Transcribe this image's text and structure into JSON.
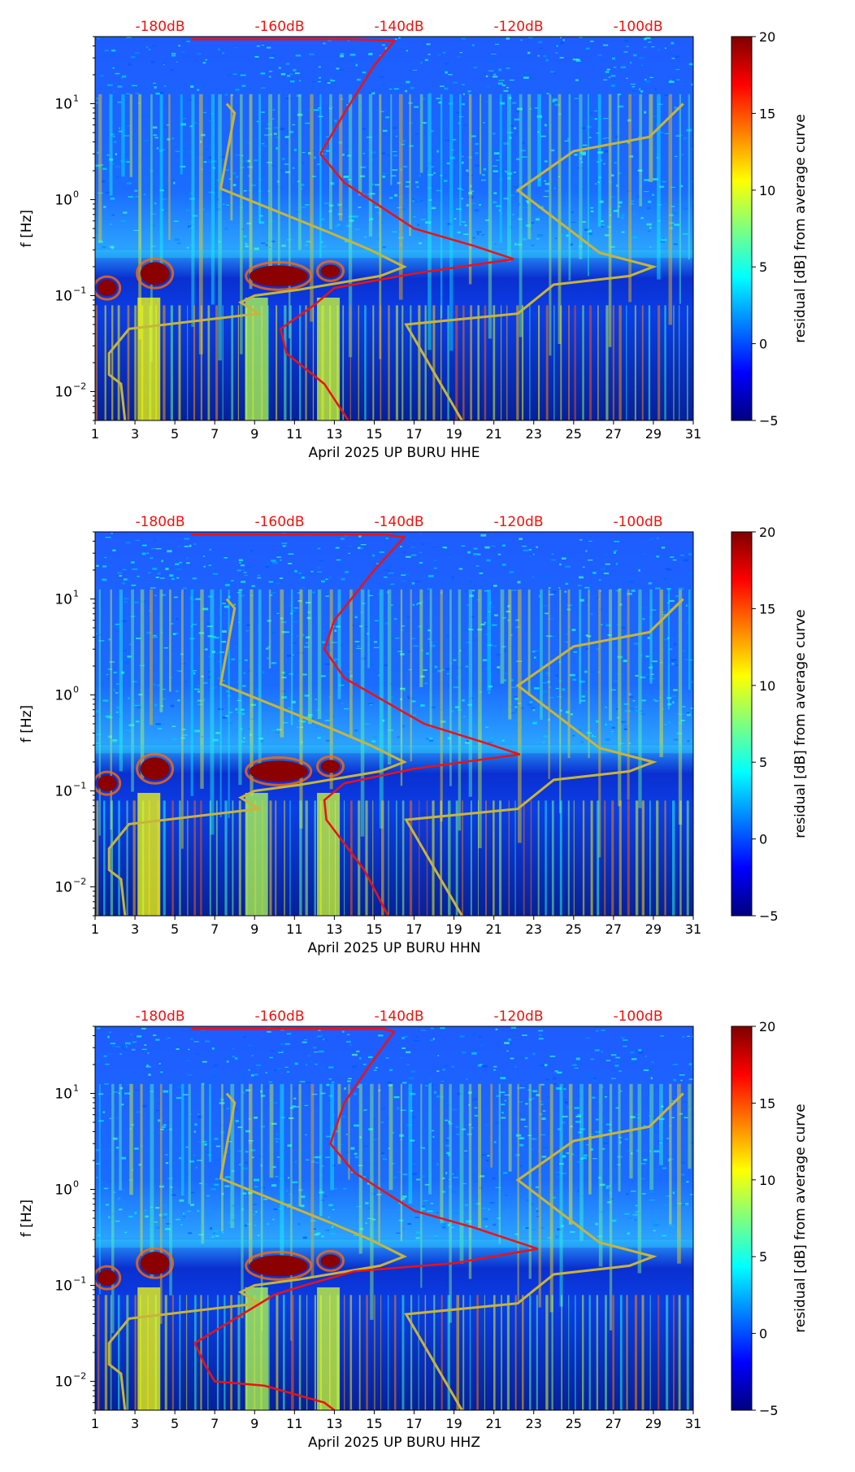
{
  "chart_data": [
    {
      "type": "heatmap",
      "title": "",
      "xlabel": "April 2025 UP BURU  HHE",
      "ylabel": "f [Hz]",
      "xlim": [
        1,
        31
      ],
      "x_ticks": [
        "1",
        "3",
        "5",
        "7",
        "9",
        "11",
        "13",
        "15",
        "17",
        "19",
        "21",
        "23",
        "25",
        "27",
        "29",
        "31"
      ],
      "y_ticks": [
        {
          "label": "10",
          "exp": "1"
        },
        {
          "label": "10",
          "exp": "0"
        },
        {
          "label": "10",
          "exp": "−1"
        },
        {
          "label": "10",
          "exp": "−2"
        }
      ],
      "top_axis_labels": [
        "-180dB",
        "-160dB",
        "-140dB",
        "-120dB",
        "-100dB"
      ],
      "colorbar": {
        "label": "residual [dB] from average curve",
        "min": -5,
        "max": 20,
        "ticks": [
          "20",
          "15",
          "10",
          "5",
          "0",
          "−5"
        ]
      }
    },
    {
      "type": "heatmap",
      "title": "",
      "xlabel": "April 2025 UP BURU  HHN",
      "ylabel": "f [Hz]",
      "xlim": [
        1,
        31
      ],
      "x_ticks": [
        "1",
        "3",
        "5",
        "7",
        "9",
        "11",
        "13",
        "15",
        "17",
        "19",
        "21",
        "23",
        "25",
        "27",
        "29",
        "31"
      ],
      "y_ticks": [
        {
          "label": "10",
          "exp": "1"
        },
        {
          "label": "10",
          "exp": "0"
        },
        {
          "label": "10",
          "exp": "−1"
        },
        {
          "label": "10",
          "exp": "−2"
        }
      ],
      "top_axis_labels": [
        "-180dB",
        "-160dB",
        "-140dB",
        "-120dB",
        "-100dB"
      ],
      "colorbar": {
        "label": "residual [dB] from average curve",
        "min": -5,
        "max": 20,
        "ticks": [
          "20",
          "15",
          "10",
          "5",
          "0",
          "−5"
        ]
      }
    },
    {
      "type": "heatmap",
      "title": "",
      "xlabel": "April 2025 UP BURU  HHZ",
      "ylabel": "f [Hz]",
      "xlim": [
        1,
        31
      ],
      "x_ticks": [
        "1",
        "3",
        "5",
        "7",
        "9",
        "11",
        "13",
        "15",
        "17",
        "19",
        "21",
        "23",
        "25",
        "27",
        "29",
        "31"
      ],
      "y_ticks": [
        {
          "label": "10",
          "exp": "1"
        },
        {
          "label": "10",
          "exp": "0"
        },
        {
          "label": "10",
          "exp": "−1"
        },
        {
          "label": "10",
          "exp": "−2"
        }
      ],
      "top_axis_labels": [
        "-180dB",
        "-160dB",
        "-140dB",
        "-120dB",
        "-100dB"
      ],
      "colorbar": {
        "label": "residual [dB] from average curve",
        "min": -5,
        "max": 20,
        "ticks": [
          "20",
          "15",
          "10",
          "5",
          "0",
          "−5"
        ]
      }
    }
  ],
  "colors": {
    "psd_curve": "#ee1111",
    "noise_model": "#c8b43a",
    "top_labels": "#ee1111"
  }
}
